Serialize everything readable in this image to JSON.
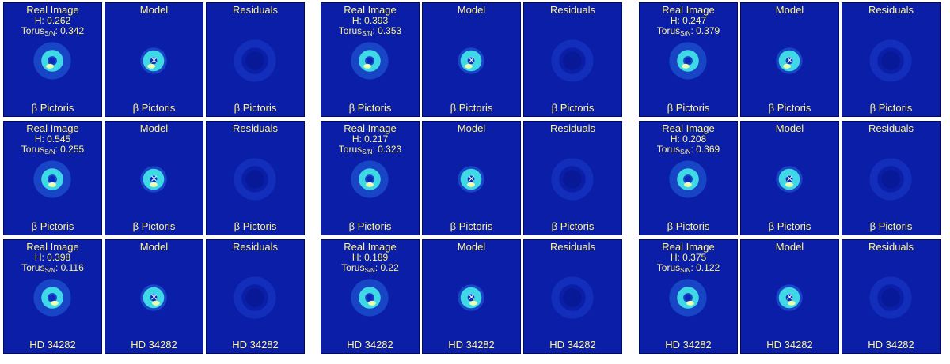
{
  "titles": {
    "real": "Real Image",
    "model": "Model",
    "residuals": "Residuals"
  },
  "stat_labels": {
    "h": "H:",
    "torus": "Torus",
    "torus_sub": "S/N"
  },
  "model_marker": "×",
  "colors": {
    "background": "#0a1ea8",
    "text": "#fff48a",
    "ring": "#3fd8e6",
    "core": "#eaffb0"
  },
  "groups": [
    {
      "rows": [
        {
          "target": "β Pictoris",
          "h": "0.262",
          "torus": "0.342"
        },
        {
          "target": "β Pictoris",
          "h": "0.545",
          "torus": "0.255"
        },
        {
          "target": "HD 34282",
          "h": "0.398",
          "torus": "0.116"
        }
      ]
    },
    {
      "rows": [
        {
          "target": "β Pictoris",
          "h": "0.393",
          "torus": "0.353"
        },
        {
          "target": "β Pictoris",
          "h": "0.217",
          "torus": "0.323"
        },
        {
          "target": "HD 34282",
          "h": "0.189",
          "torus": "0.22"
        }
      ]
    },
    {
      "rows": [
        {
          "target": "β Pictoris",
          "h": "0.247",
          "torus": "0.379"
        },
        {
          "target": "β Pictoris",
          "h": "0.208",
          "torus": "0.369"
        },
        {
          "target": "HD 34282",
          "h": "0.375",
          "torus": "0.122"
        }
      ]
    }
  ]
}
